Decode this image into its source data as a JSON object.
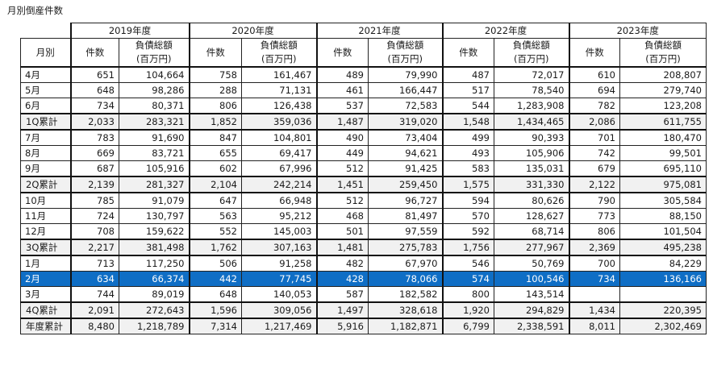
{
  "title": "月別倒産件数",
  "header": {
    "month_label": "月別",
    "years": [
      "2019年度",
      "2020年度",
      "2021年度",
      "2022年度",
      "2023年度"
    ],
    "count_label": "件数",
    "debt_label_line1": "負債総額",
    "debt_label_line2": "(百万円)"
  },
  "rows": [
    {
      "label": "4月",
      "type": "month",
      "cells": [
        "651",
        "104,664",
        "758",
        "161,467",
        "489",
        "79,990",
        "487",
        "72,017",
        "610",
        "208,807"
      ]
    },
    {
      "label": "5月",
      "type": "month",
      "cells": [
        "648",
        "98,286",
        "288",
        "71,131",
        "461",
        "166,447",
        "517",
        "78,540",
        "694",
        "279,740"
      ]
    },
    {
      "label": "6月",
      "type": "month",
      "cells": [
        "734",
        "80,371",
        "806",
        "126,438",
        "537",
        "72,583",
        "544",
        "1,283,908",
        "782",
        "123,208"
      ]
    },
    {
      "label": "1Q累計",
      "type": "total",
      "cells": [
        "2,033",
        "283,321",
        "1,852",
        "359,036",
        "1,487",
        "319,020",
        "1,548",
        "1,434,465",
        "2,086",
        "611,755"
      ]
    },
    {
      "label": "7月",
      "type": "month",
      "cells": [
        "783",
        "91,690",
        "847",
        "104,801",
        "490",
        "73,404",
        "499",
        "90,393",
        "701",
        "180,470"
      ]
    },
    {
      "label": "8月",
      "type": "month",
      "cells": [
        "669",
        "83,721",
        "655",
        "69,417",
        "449",
        "94,621",
        "493",
        "105,906",
        "742",
        "99,501"
      ]
    },
    {
      "label": "9月",
      "type": "month",
      "cells": [
        "687",
        "105,916",
        "602",
        "67,996",
        "512",
        "91,425",
        "583",
        "135,031",
        "679",
        "695,110"
      ]
    },
    {
      "label": "2Q累計",
      "type": "total",
      "cells": [
        "2,139",
        "281,327",
        "2,104",
        "242,214",
        "1,451",
        "259,450",
        "1,575",
        "331,330",
        "2,122",
        "975,081"
      ]
    },
    {
      "label": "10月",
      "type": "month",
      "cells": [
        "785",
        "91,079",
        "647",
        "66,948",
        "512",
        "96,727",
        "594",
        "80,626",
        "790",
        "305,584"
      ]
    },
    {
      "label": "11月",
      "type": "month",
      "cells": [
        "724",
        "130,797",
        "563",
        "95,212",
        "468",
        "81,497",
        "570",
        "128,627",
        "773",
        "88,150"
      ]
    },
    {
      "label": "12月",
      "type": "month",
      "cells": [
        "708",
        "159,622",
        "552",
        "145,003",
        "501",
        "97,559",
        "592",
        "68,714",
        "806",
        "101,504"
      ]
    },
    {
      "label": "3Q累計",
      "type": "total",
      "cells": [
        "2,217",
        "381,498",
        "1,762",
        "307,163",
        "1,481",
        "275,783",
        "1,756",
        "277,967",
        "2,369",
        "495,238"
      ]
    },
    {
      "label": "1月",
      "type": "month",
      "cells": [
        "713",
        "117,250",
        "506",
        "91,258",
        "482",
        "67,970",
        "546",
        "50,769",
        "700",
        "84,229"
      ]
    },
    {
      "label": "2月",
      "type": "highlight",
      "cells": [
        "634",
        "66,374",
        "442",
        "77,745",
        "428",
        "78,066",
        "574",
        "100,546",
        "734",
        "136,166"
      ]
    },
    {
      "label": "3月",
      "type": "month",
      "cells": [
        "744",
        "89,019",
        "648",
        "140,053",
        "587",
        "182,582",
        "800",
        "143,514",
        "",
        ""
      ]
    },
    {
      "label": "4Q累計",
      "type": "total",
      "cells": [
        "2,091",
        "272,643",
        "1,596",
        "309,056",
        "1,497",
        "328,618",
        "1,920",
        "294,829",
        "1,434",
        "220,395"
      ]
    },
    {
      "label": "年度累計",
      "type": "grand",
      "cells": [
        "8,480",
        "1,218,789",
        "7,314",
        "1,217,469",
        "5,916",
        "1,182,871",
        "6,799",
        "2,338,591",
        "8,011",
        "2,302,469"
      ]
    }
  ],
  "colors": {
    "highlight": "#0f6ec5",
    "total_bg": "#f1f1f1"
  }
}
